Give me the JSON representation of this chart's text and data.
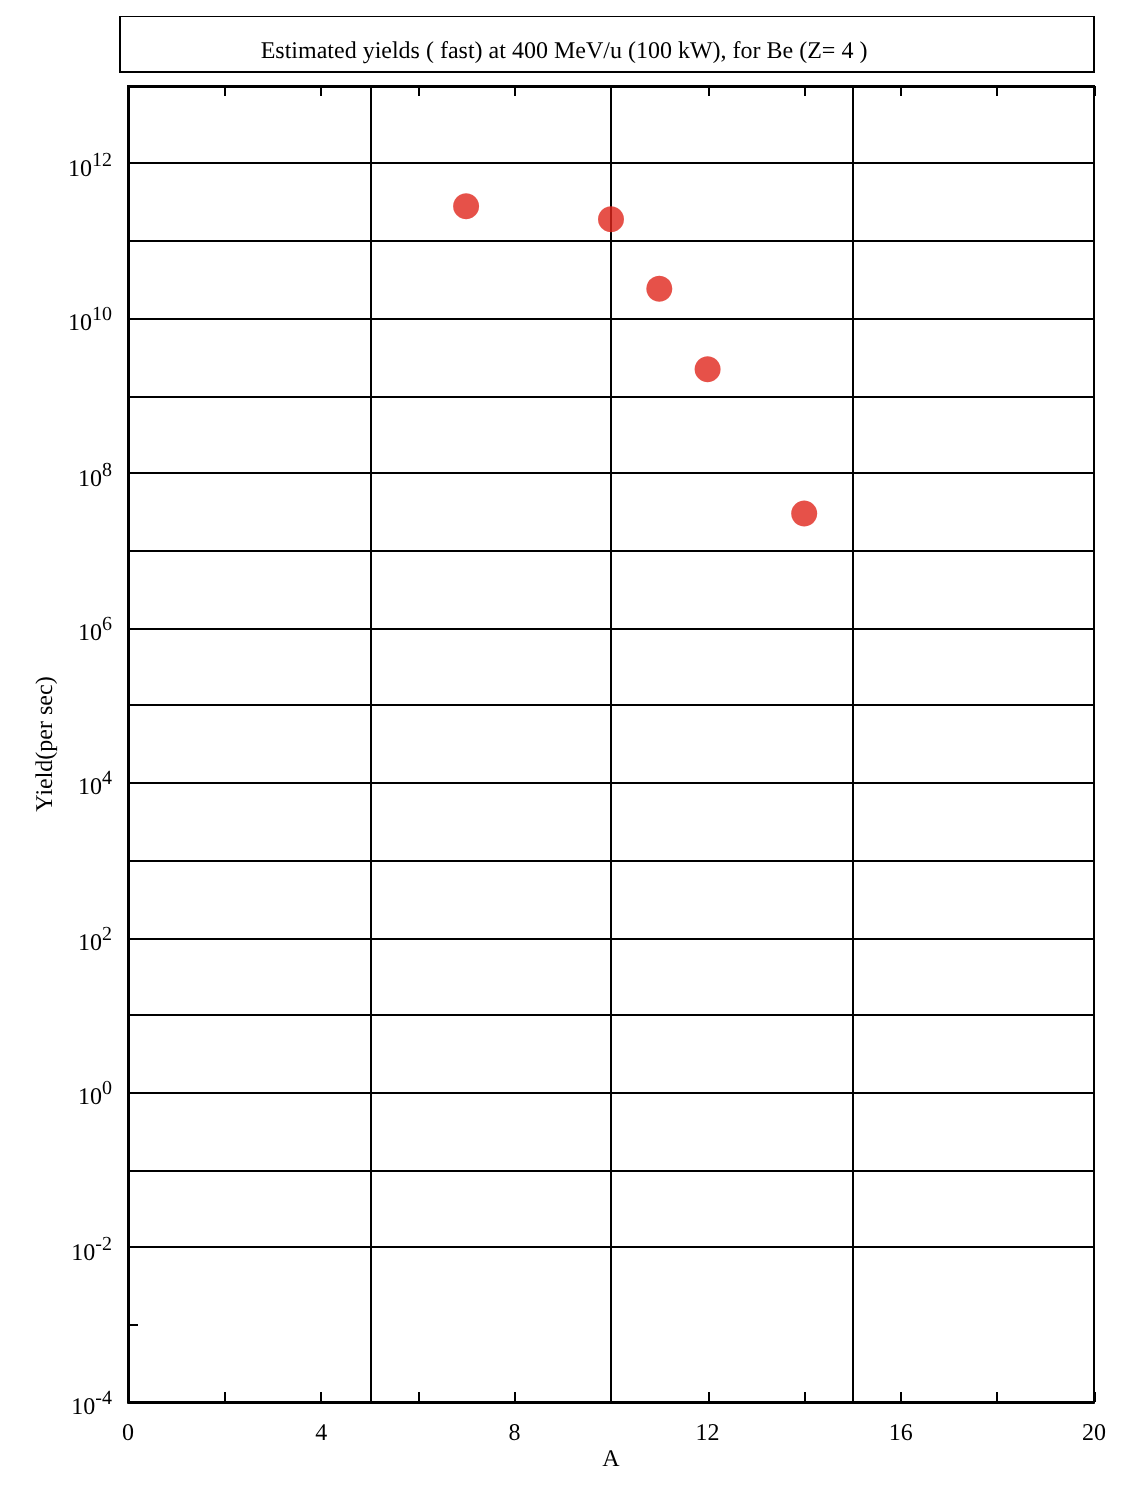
{
  "chart_data": {
    "type": "scatter",
    "title": "Estimated yields ( fast) at 400 MeV/u (100 kW), for Be (Z= 4 )",
    "xlabel": "A",
    "ylabel": "Yield(per sec)",
    "x": [
      7,
      10,
      11,
      12,
      14
    ],
    "series": [
      {
        "color": "#e0261c",
        "values": [
          280000000000.0,
          190000000000.0,
          24000000000.0,
          2200000000.0,
          30000000.0
        ]
      }
    ],
    "xlim": [
      0,
      20
    ],
    "xticks": [
      0,
      {
        "value": 2,
        "label": null
      },
      4,
      {
        "value": 6,
        "label": null
      },
      8,
      {
        "value": 10,
        "label": null
      },
      12,
      {
        "value": 14,
        "label": null
      },
      16,
      {
        "value": 18,
        "label": null
      },
      20
    ],
    "ylim": [
      0.0001,
      10000000000000.0
    ],
    "log": "y",
    "yticks": [
      {
        "value": 0.0001,
        "label": "10$^{-4}$"
      },
      {
        "value": 0.001,
        "label": null
      },
      {
        "value": 0.01,
        "label": "10$^{-2}$"
      },
      {
        "value": 0.1,
        "label": null
      },
      {
        "value": 1,
        "label": "10$^{0}$"
      },
      {
        "value": 10,
        "label": null
      },
      {
        "value": 100,
        "label": "10$^{2}$"
      },
      {
        "value": 1000,
        "label": null
      },
      {
        "value": 10000.0,
        "label": "10$^{4}$"
      },
      {
        "value": 100000.0,
        "label": null
      },
      {
        "value": 1000000.0,
        "label": "10$^{6}$"
      },
      {
        "value": 10000000.0,
        "label": null
      },
      {
        "value": 100000000.0,
        "label": "10$^{8}$"
      },
      {
        "value": 1000000000.0,
        "label": null
      },
      {
        "value": 10000000000.0,
        "label": "10$^{10}$"
      },
      {
        "value": 100000000000.0,
        "label": null
      },
      {
        "value": 1000000000000.0,
        "label": "10$^{12}$"
      },
      {
        "value": 10000000000000.0,
        "label": null
      }
    ],
    "grid": "y",
    "marker": "circle",
    "ref_lines": [
      {
        "axis": "x",
        "value": 5,
        "color": "#000000"
      },
      {
        "axis": "x",
        "value": 10,
        "color": "#000000"
      },
      {
        "axis": "x",
        "value": 15,
        "color": "#000000"
      }
    ]
  }
}
